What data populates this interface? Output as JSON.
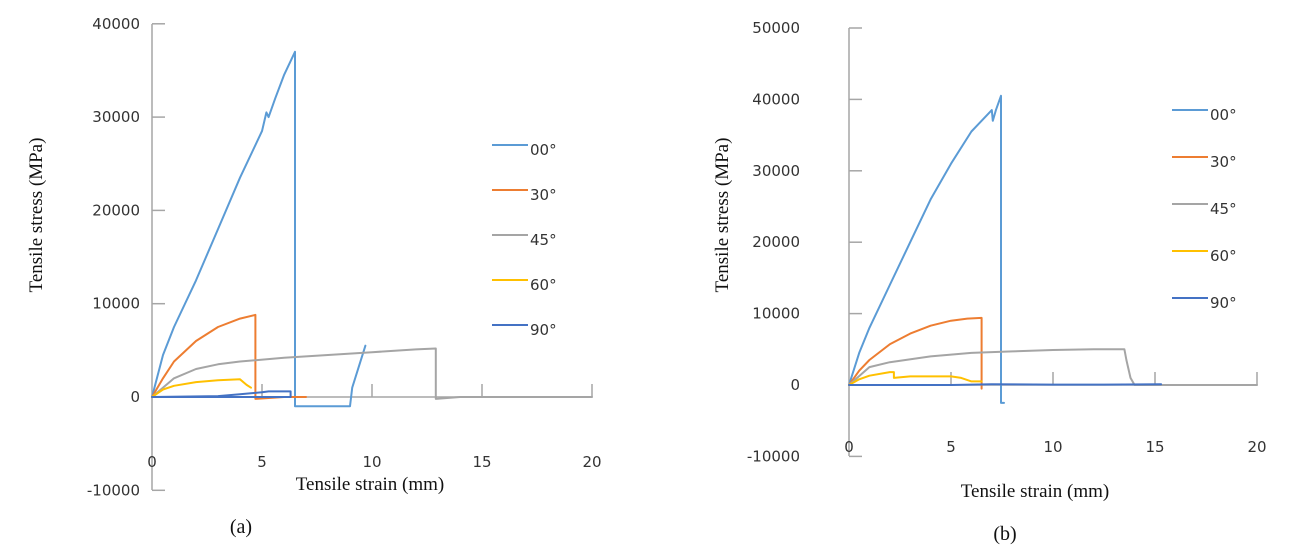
{
  "chart_data": [
    {
      "id": "a",
      "type": "line",
      "caption": "(a)",
      "title": "",
      "xlabel": "Tensile strain (mm)",
      "ylabel": "Tensile stress (MPa)",
      "xlim": [
        0,
        20
      ],
      "ylim": [
        -10000,
        40000
      ],
      "xticks": [
        "0",
        "5",
        "10",
        "15",
        "20"
      ],
      "yticks": [
        "40000",
        "30000",
        "20000",
        "10000",
        "0",
        "-10000"
      ],
      "grid": false,
      "legend_position": "right",
      "series": [
        {
          "name": "00°",
          "color": "#5b9bd5",
          "points": [
            [
              0,
              0
            ],
            [
              0.5,
              4500
            ],
            [
              1,
              7500
            ],
            [
              2,
              12500
            ],
            [
              3,
              18000
            ],
            [
              4,
              23500
            ],
            [
              5,
              28500
            ],
            [
              5.2,
              30500
            ],
            [
              5.3,
              30000
            ],
            [
              5.6,
              32000
            ],
            [
              6,
              34500
            ],
            [
              6.5,
              37000
            ],
            [
              6.5,
              -1000
            ],
            [
              9,
              -1000
            ],
            [
              9.1,
              1000
            ],
            [
              9.7,
              5500
            ]
          ]
        },
        {
          "name": "30°",
          "color": "#ed7d31",
          "points": [
            [
              0,
              0
            ],
            [
              0.5,
              2000
            ],
            [
              1,
              3800
            ],
            [
              2,
              6000
            ],
            [
              3,
              7500
            ],
            [
              4,
              8400
            ],
            [
              4.7,
              8800
            ],
            [
              4.7,
              -200
            ],
            [
              6,
              0
            ],
            [
              7,
              0
            ]
          ]
        },
        {
          "name": "45°",
          "color": "#a5a5a5",
          "points": [
            [
              0,
              0
            ],
            [
              1,
              2000
            ],
            [
              2,
              3000
            ],
            [
              3,
              3500
            ],
            [
              4,
              3800
            ],
            [
              6,
              4200
            ],
            [
              8,
              4500
            ],
            [
              10,
              4800
            ],
            [
              12,
              5100
            ],
            [
              12.9,
              5200
            ],
            [
              12.9,
              -200
            ],
            [
              14,
              0
            ],
            [
              20,
              0
            ]
          ]
        },
        {
          "name": "60°",
          "color": "#ffc000",
          "points": [
            [
              0,
              0
            ],
            [
              0.5,
              800
            ],
            [
              1,
              1200
            ],
            [
              2,
              1600
            ],
            [
              3,
              1800
            ],
            [
              4,
              1900
            ],
            [
              4.3,
              1300
            ],
            [
              4.5,
              1000
            ]
          ]
        },
        {
          "name": "90°",
          "color": "#4472c4",
          "points": [
            [
              0,
              0
            ],
            [
              3,
              100
            ],
            [
              4,
              300
            ],
            [
              5,
              500
            ],
            [
              5.3,
              600
            ],
            [
              6.3,
              600
            ],
            [
              6.3,
              0
            ],
            [
              0,
              0
            ]
          ]
        }
      ]
    },
    {
      "id": "b",
      "type": "line",
      "caption": "(b)",
      "title": "",
      "xlabel": "Tensile strain (mm)",
      "ylabel": "Tensile stress (MPa)",
      "xlim": [
        0,
        20
      ],
      "ylim": [
        -10000,
        50000
      ],
      "xticks": [
        "0",
        "5",
        "10",
        "15",
        "20"
      ],
      "yticks": [
        "50000",
        "40000",
        "30000",
        "20000",
        "10000",
        "0",
        "-10000"
      ],
      "grid": false,
      "legend_position": "right",
      "series": [
        {
          "name": "00°",
          "color": "#5b9bd5",
          "points": [
            [
              0,
              0
            ],
            [
              0.5,
              4500
            ],
            [
              1,
              8000
            ],
            [
              2,
              14000
            ],
            [
              3,
              20000
            ],
            [
              4,
              26000
            ],
            [
              5,
              31000
            ],
            [
              6,
              35500
            ],
            [
              7,
              38500
            ],
            [
              7.05,
              37000
            ],
            [
              7.2,
              38500
            ],
            [
              7.45,
              40500
            ],
            [
              7.45,
              -2500
            ],
            [
              7.6,
              -2500
            ]
          ]
        },
        {
          "name": "30°",
          "color": "#ed7d31",
          "points": [
            [
              0,
              0
            ],
            [
              0.5,
              2000
            ],
            [
              1,
              3500
            ],
            [
              2,
              5700
            ],
            [
              3,
              7200
            ],
            [
              4,
              8300
            ],
            [
              5,
              9000
            ],
            [
              5.8,
              9300
            ],
            [
              6.5,
              9400
            ],
            [
              6.5,
              -500
            ]
          ]
        },
        {
          "name": "45°",
          "color": "#a5a5a5",
          "points": [
            [
              0,
              0
            ],
            [
              1,
              2500
            ],
            [
              2,
              3200
            ],
            [
              4,
              4000
            ],
            [
              6,
              4500
            ],
            [
              8,
              4700
            ],
            [
              10,
              4900
            ],
            [
              12,
              5000
            ],
            [
              13.5,
              5000
            ],
            [
              13.6,
              3500
            ],
            [
              13.8,
              1000
            ],
            [
              14,
              0
            ],
            [
              20,
              0
            ]
          ]
        },
        {
          "name": "60°",
          "color": "#ffc000",
          "points": [
            [
              0,
              0
            ],
            [
              0.5,
              800
            ],
            [
              1,
              1300
            ],
            [
              2,
              1800
            ],
            [
              2.2,
              1800
            ],
            [
              2.2,
              1000
            ],
            [
              3,
              1200
            ],
            [
              5,
              1200
            ],
            [
              5.5,
              1000
            ],
            [
              6,
              500
            ],
            [
              6.5,
              500
            ]
          ]
        },
        {
          "name": "90°",
          "color": "#4472c4",
          "points": [
            [
              0,
              0
            ],
            [
              2,
              0
            ],
            [
              5,
              0
            ],
            [
              7,
              100
            ],
            [
              10,
              50
            ],
            [
              12.5,
              50
            ],
            [
              15.3,
              100
            ]
          ]
        }
      ]
    }
  ]
}
